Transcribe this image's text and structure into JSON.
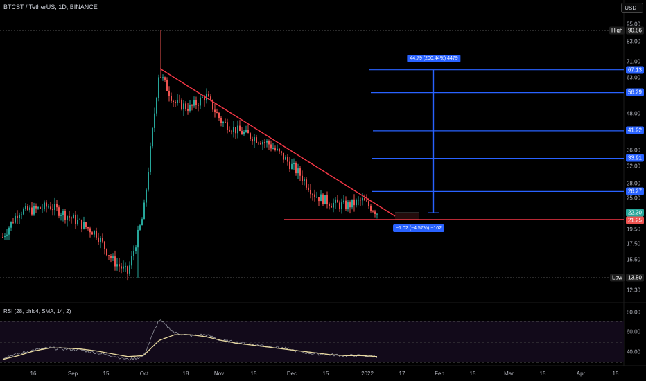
{
  "header": {
    "symbol": "BTCST / TetherUS, 1D, BINANCE",
    "currency_button": "USDT"
  },
  "price_axis": {
    "ticks": [
      "95.00",
      "83.00",
      "71.00",
      "63.00",
      "48.00",
      "36.00",
      "32.00",
      "28.00",
      "25.00",
      "19.50",
      "17.50",
      "15.50",
      "12.30"
    ],
    "high_label": "High",
    "high_value": "90.86",
    "low_label": "Low",
    "low_value": "13.50",
    "last_price": "22.30",
    "support_price": "21.25",
    "target_levels": [
      "67.13",
      "56.29",
      "41.92",
      "33.91",
      "26.27"
    ]
  },
  "time_axis": {
    "ticks": [
      "16",
      "Sep",
      "15",
      "Oct",
      "18",
      "Nov",
      "15",
      "Dec",
      "15",
      "2022",
      "17",
      "Feb",
      "15",
      "Mar",
      "15",
      "Apr",
      "15"
    ]
  },
  "measurements": {
    "upper": "44.79 (200.44%) 4479",
    "lower": "−1.02 (−4.57%) −102"
  },
  "rsi": {
    "label": "RSI (28, ohlc4, SMA, 14, 2)",
    "ticks": [
      "80.00",
      "60.00",
      "40.00"
    ]
  },
  "colors": {
    "background": "#000000",
    "up_candle": "#26a69a",
    "down_candle": "#ef5350",
    "trendline": "#f23645",
    "target_line": "#2962ff",
    "rsi_line": "#9598a1",
    "rsi_ma": "#e8d9a0"
  },
  "chart_data": {
    "type": "candlestick",
    "pair": "BTCST / TetherUS",
    "interval": "1D",
    "close_series_approx": [
      {
        "date": "Aug 3",
        "close": 18.5
      },
      {
        "date": "Aug 10",
        "close": 22.5
      },
      {
        "date": "Aug 16",
        "close": 22.8
      },
      {
        "date": "Aug 23",
        "close": 23.5
      },
      {
        "date": "Aug 30",
        "close": 22.0
      },
      {
        "date": "Sep 8",
        "close": 20.5
      },
      {
        "date": "Sep 15",
        "close": 19.0
      },
      {
        "date": "Sep 21",
        "close": 15.5
      },
      {
        "date": "Sep 28",
        "close": 14.0
      },
      {
        "date": "Oct 1",
        "close": 22.0
      },
      {
        "date": "Oct 4",
        "close": 66.0
      },
      {
        "date": "Oct 8",
        "close": 52.0
      },
      {
        "date": "Oct 14",
        "close": 50.0
      },
      {
        "date": "Oct 18",
        "close": 55.0
      },
      {
        "date": "Oct 25",
        "close": 45.0
      },
      {
        "date": "Nov 1",
        "close": 42.0
      },
      {
        "date": "Nov 8",
        "close": 40.0
      },
      {
        "date": "Nov 15",
        "close": 38.0
      },
      {
        "date": "Nov 22",
        "close": 34.0
      },
      {
        "date": "Nov 29",
        "close": 30.0
      },
      {
        "date": "Dec 6",
        "close": 25.5
      },
      {
        "date": "Dec 13",
        "close": 24.0
      },
      {
        "date": "Dec 20",
        "close": 23.5
      },
      {
        "date": "Dec 27",
        "close": 24.5
      },
      {
        "date": "Jan 3",
        "close": 22.3
      }
    ],
    "high": 90.86,
    "low": 13.5,
    "last": 22.3,
    "support": 21.25,
    "targets": [
      67.13,
      56.29,
      41.92,
      33.91,
      26.27
    ],
    "rsi_series_approx": [
      42,
      46,
      50,
      52,
      51,
      50,
      47,
      44,
      40,
      43,
      82,
      68,
      65,
      66,
      60,
      58,
      56,
      54,
      52,
      48,
      46,
      45,
      44,
      44,
      43
    ],
    "rsi_ma_series_approx": [
      40,
      44,
      49,
      52,
      52,
      51,
      49,
      46,
      43,
      44,
      60,
      66,
      66,
      64,
      60,
      57,
      55,
      53,
      51,
      49,
      47,
      45,
      44,
      44,
      43
    ]
  }
}
